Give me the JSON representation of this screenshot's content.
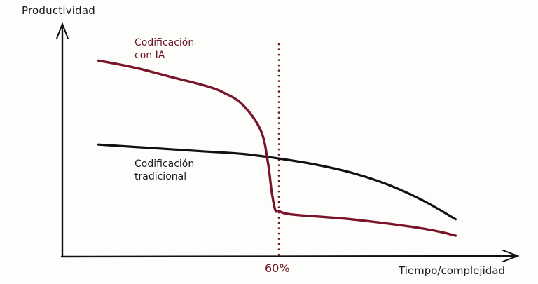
{
  "chart_data": {
    "type": "line",
    "title": "",
    "xlabel": "Tiempo/complejidad",
    "ylabel": "Productividad",
    "grid": false,
    "legend": "inline labels",
    "xlim": [
      0,
      110
    ],
    "ylim": [
      0,
      100
    ],
    "annotations": [
      {
        "type": "vline",
        "x": 60,
        "label": "60%",
        "style": "dotted",
        "color": "#6e1423"
      }
    ],
    "series": [
      {
        "name": "Codificación con IA",
        "color": "#7a1428",
        "x": [
          10,
          20,
          30,
          40,
          45,
          50,
          55,
          57,
          58,
          59,
          60,
          64,
          80,
          100,
          109
        ],
        "y": [
          84,
          81,
          77,
          73,
          70,
          65,
          54,
          40,
          28,
          20,
          19.5,
          18,
          16,
          12,
          9
        ]
      },
      {
        "name": "Codificación tradicional",
        "color": "#111111",
        "x": [
          10,
          20,
          30,
          40,
          50,
          60,
          70,
          80,
          90,
          100,
          109
        ],
        "y": [
          48,
          47,
          46,
          45,
          44,
          42,
          39.5,
          36,
          31,
          24,
          16
        ]
      }
    ]
  },
  "labels": {
    "y_axis": "Productividad",
    "x_axis": "Tiempo/complejidad",
    "threshold": "60%",
    "ai_line_1": "Codificación",
    "ai_line_2": "con IA",
    "trad_line_1": "Codificación",
    "trad_line_2": "tradicional"
  },
  "colors": {
    "ai": "#7a1428",
    "traditional": "#111111",
    "axis": "#111111",
    "background": "#fdfdfb"
  }
}
